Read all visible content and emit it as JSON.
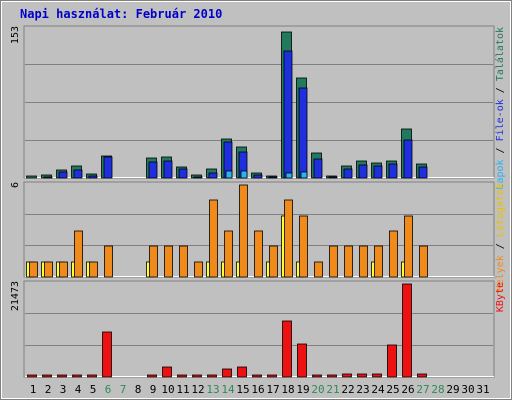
{
  "title": "Napi használat: Február 2010",
  "colors": {
    "title": "#0000cc",
    "plot_bg": "#c0c0c0",
    "outer_bg": "#ffffff",
    "grid": "#808080",
    "weekend": "#2e8b57",
    "weekday": "#000000",
    "hits_bar": "#217a5e",
    "files_bar": "#1f2fe0",
    "pages_bar": "#29b3f0",
    "visits_bar": "#f08a1a",
    "sites_bar": "#ffff33",
    "kbytes_bar": "#ee1111"
  },
  "chart_data": [
    {
      "type": "bar",
      "name": "top",
      "ymax_label": "153",
      "ylim": [
        0,
        153
      ],
      "grid": true,
      "right_label": [
        {
          "text": "Lapok",
          "color": "#29b3f0"
        },
        {
          "text": " / ",
          "color": "#000000"
        },
        {
          "text": "File-ok",
          "color": "#1f2fe0"
        },
        {
          "text": " / ",
          "color": "#000000"
        },
        {
          "text": "Találatok",
          "color": "#217a5e"
        }
      ],
      "categories": [
        "1",
        "2",
        "3",
        "4",
        "5",
        "6",
        "7",
        "8",
        "9",
        "10",
        "11",
        "12",
        "13",
        "14",
        "15",
        "16",
        "17",
        "18",
        "19",
        "20",
        "21",
        "22",
        "23",
        "24",
        "25",
        "26",
        "27",
        "28",
        "29",
        "30",
        "31"
      ],
      "series": [
        {
          "name": "Találatok",
          "key": "hits_bar",
          "values": [
            2,
            3,
            8,
            12,
            4,
            23,
            0,
            0,
            21,
            22,
            11,
            3,
            9,
            40,
            32,
            5,
            2,
            150,
            103,
            26,
            2,
            12,
            17,
            15,
            17,
            50,
            14,
            0,
            0,
            0,
            0
          ]
        },
        {
          "name": "File-ok",
          "key": "files_bar",
          "values": [
            0,
            1,
            6,
            8,
            2,
            22,
            0,
            0,
            16,
            17,
            9,
            1,
            5,
            37,
            27,
            3,
            1,
            130,
            92,
            20,
            1,
            9,
            13,
            12,
            14,
            39,
            11,
            0,
            0,
            0,
            0
          ]
        },
        {
          "name": "Lapok",
          "key": "pages_bar",
          "values": [
            0,
            0,
            0,
            0,
            0,
            0,
            0,
            0,
            0,
            0,
            0,
            0,
            0,
            7,
            7,
            0,
            0,
            5,
            6,
            0,
            0,
            0,
            0,
            0,
            0,
            0,
            0,
            0,
            0,
            0,
            0
          ]
        }
      ]
    },
    {
      "type": "bar",
      "name": "middle",
      "ymax_label": "6",
      "ylim": [
        0,
        6
      ],
      "grid": true,
      "right_label": [
        {
          "text": "Helyek",
          "color": "#f08a1a"
        },
        {
          "text": " / ",
          "color": "#000000"
        },
        {
          "text": "Látogatók",
          "color": "#e6c200"
        }
      ],
      "categories": [
        "1",
        "2",
        "3",
        "4",
        "5",
        "6",
        "7",
        "8",
        "9",
        "10",
        "11",
        "12",
        "13",
        "14",
        "15",
        "16",
        "17",
        "18",
        "19",
        "20",
        "21",
        "22",
        "23",
        "24",
        "25",
        "26",
        "27",
        "28",
        "29",
        "30",
        "31"
      ],
      "series": [
        {
          "name": "Helyek",
          "key": "sites_bar",
          "values": [
            1,
            1,
            1,
            1,
            1,
            0,
            0,
            0,
            1,
            0,
            0,
            0,
            1,
            1,
            1,
            0,
            1,
            4,
            1,
            0,
            0,
            0,
            0,
            1,
            0,
            1,
            0,
            0,
            0,
            0,
            0
          ]
        },
        {
          "name": "Látogatók",
          "key": "visits_bar",
          "values": [
            1,
            1,
            1,
            3,
            1,
            2,
            0,
            0,
            2,
            2,
            2,
            1,
            5,
            3,
            6,
            3,
            2,
            5,
            4,
            1,
            2,
            2,
            2,
            2,
            3,
            4,
            2,
            0,
            0,
            0,
            0
          ]
        }
      ]
    },
    {
      "type": "bar",
      "name": "bottom",
      "ymax_label": "21473",
      "ylim": [
        0,
        21473
      ],
      "grid": true,
      "right_label": [
        {
          "text": "KByte",
          "color": "#ee1111"
        }
      ],
      "categories": [
        "1",
        "2",
        "3",
        "4",
        "5",
        "6",
        "7",
        "8",
        "9",
        "10",
        "11",
        "12",
        "13",
        "14",
        "15",
        "16",
        "17",
        "18",
        "19",
        "20",
        "21",
        "22",
        "23",
        "24",
        "25",
        "26",
        "27",
        "28",
        "29",
        "30",
        "31"
      ],
      "series": [
        {
          "name": "KByte",
          "key": "kbytes_bar",
          "values": [
            80,
            90,
            400,
            300,
            80,
            10290,
            0,
            0,
            550,
            2300,
            350,
            150,
            150,
            1800,
            2300,
            150,
            100,
            12900,
            7600,
            500,
            350,
            650,
            650,
            700,
            7400,
            21473,
            600,
            0,
            0,
            0,
            0
          ]
        }
      ]
    }
  ],
  "weekend_days": [
    "6",
    "7",
    "13",
    "14",
    "20",
    "21",
    "27",
    "28"
  ]
}
